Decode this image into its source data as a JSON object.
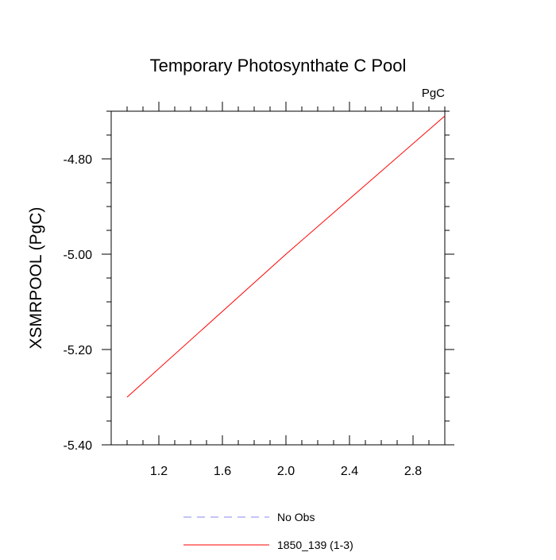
{
  "chart_data": {
    "type": "line",
    "title": "Temporary Photosynthate C Pool",
    "units": "PgC",
    "xlabel": "",
    "ylabel": "XSMRPOOL  (PgC)",
    "xlim": [
      0.9,
      3.0
    ],
    "ylim": [
      -5.4,
      -4.7
    ],
    "x_ticks": [
      1.2,
      1.6,
      2.0,
      2.4,
      2.8
    ],
    "x_tick_labels": [
      "1.2",
      "1.6",
      "2.0",
      "2.4",
      "2.8"
    ],
    "y_ticks": [
      -5.4,
      -5.2,
      -5.0,
      -4.8
    ],
    "y_tick_labels": [
      "-5.40",
      "-5.20",
      "-5.00",
      "-4.80"
    ],
    "grid": false,
    "legend_position": "bottom-center",
    "series": [
      {
        "name": "No Obs",
        "color": "#8888ee",
        "dash": true,
        "x": [],
        "y": []
      },
      {
        "name": "1850_139 (1-3)",
        "color": "#ff0000",
        "dash": false,
        "x": [
          1.0,
          2.0,
          3.0
        ],
        "y": [
          -5.3,
          -5.0,
          -4.71
        ]
      }
    ]
  }
}
